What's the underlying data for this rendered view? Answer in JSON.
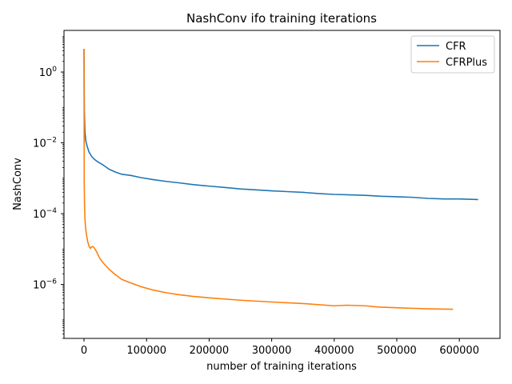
{
  "chart_data": {
    "type": "line",
    "title": "NashConv ifo training iterations",
    "xlabel": "number of training iterations",
    "ylabel": "NashConv",
    "xlim": [
      -32000,
      665000
    ],
    "ylim": [
      3e-08,
      15
    ],
    "yscale": "log",
    "grid": false,
    "legend_position": "top-right",
    "x_ticks": [
      {
        "value": 0,
        "label": "0"
      },
      {
        "value": 100000,
        "label": "100000"
      },
      {
        "value": 200000,
        "label": "200000"
      },
      {
        "value": 300000,
        "label": "300000"
      },
      {
        "value": 400000,
        "label": "400000"
      },
      {
        "value": 500000,
        "label": "500000"
      },
      {
        "value": 600000,
        "label": "600000"
      }
    ],
    "y_ticks": [
      {
        "value": 1e-06,
        "base": "10",
        "exp": "−6"
      },
      {
        "value": 0.0001,
        "base": "10",
        "exp": "−4"
      },
      {
        "value": 0.01,
        "base": "10",
        "exp": "−2"
      },
      {
        "value": 1,
        "base": "10",
        "exp": "0"
      }
    ],
    "series": [
      {
        "name": "CFR",
        "color": "#1f77b4",
        "x": [
          0,
          500,
          1500,
          3000,
          5000,
          8000,
          12000,
          16000,
          22000,
          30000,
          40000,
          50000,
          60000,
          75000,
          90000,
          110000,
          130000,
          150000,
          175000,
          200000,
          225000,
          250000,
          275000,
          300000,
          325000,
          350000,
          375000,
          400000,
          425000,
          450000,
          475000,
          500000,
          525000,
          550000,
          575000,
          600000,
          615000,
          630000
        ],
        "y": [
          4.5,
          0.08,
          0.02,
          0.011,
          0.008,
          0.0055,
          0.0042,
          0.0035,
          0.0029,
          0.0024,
          0.0018,
          0.0015,
          0.0013,
          0.0012,
          0.00105,
          0.00092,
          0.00082,
          0.00075,
          0.00066,
          0.0006,
          0.00055,
          0.0005,
          0.00047,
          0.00044,
          0.00042,
          0.0004,
          0.00037,
          0.00035,
          0.00034,
          0.00033,
          0.00031,
          0.0003,
          0.00029,
          0.00027,
          0.00026,
          0.00026,
          0.000255,
          0.00025
        ]
      },
      {
        "name": "CFRPlus",
        "color": "#ff7f0e",
        "x": [
          0,
          300,
          800,
          1500,
          2500,
          4000,
          6000,
          8000,
          10000,
          12000,
          14000,
          16000,
          20000,
          25000,
          30000,
          40000,
          50000,
          60000,
          75000,
          90000,
          110000,
          130000,
          150000,
          175000,
          200000,
          250000,
          300000,
          350000,
          400000,
          420000,
          450000,
          470000,
          500000,
          550000,
          590000
        ],
        "y": [
          4.5,
          0.0008,
          0.0002,
          7e-05,
          4e-05,
          2.5e-05,
          1.6e-05,
          1.2e-05,
          1.05e-05,
          1.15e-05,
          1.18e-05,
          1.1e-05,
          8.5e-06,
          5.5e-06,
          4.2e-06,
          2.7e-06,
          1.9e-06,
          1.4e-06,
          1.1e-06,
          8.8e-07,
          7e-07,
          5.9e-07,
          5.2e-07,
          4.6e-07,
          4.2e-07,
          3.6e-07,
          3.2e-07,
          2.9e-07,
          2.5e-07,
          2.6e-07,
          2.5e-07,
          2.3e-07,
          2.2e-07,
          2.05e-07,
          2e-07
        ]
      }
    ]
  }
}
